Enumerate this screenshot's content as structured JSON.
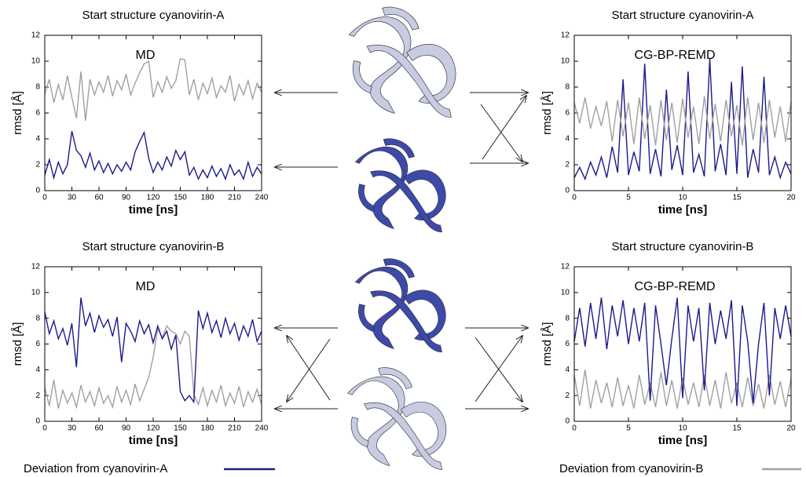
{
  "chart_data": [
    {
      "type": "line",
      "title": "Start structure cyanovirin-A",
      "annotation": "MD",
      "x_label": "time [ns]",
      "y_label": "rmsd [Å]",
      "x": [
        0,
        5,
        10,
        15,
        20,
        25,
        30,
        35,
        40,
        45,
        50,
        55,
        60,
        65,
        70,
        75,
        80,
        85,
        90,
        95,
        100,
        105,
        110,
        115,
        120,
        125,
        130,
        135,
        140,
        145,
        150,
        155,
        160,
        165,
        170,
        175,
        180,
        185,
        190,
        195,
        200,
        205,
        210,
        215,
        220,
        225,
        230,
        235,
        240
      ],
      "series": [
        {
          "color": "#a0a0a0",
          "values": [
            7.5,
            8.6,
            6.8,
            8.2,
            7.0,
            8.9,
            7.2,
            5.6,
            9.2,
            5.4,
            8.6,
            7.4,
            8.4,
            7.6,
            8.9,
            7.3,
            8.5,
            7.8,
            9.0,
            7.4,
            8.3,
            9.1,
            9.8,
            10.0,
            7.2,
            8.4,
            7.6,
            8.8,
            7.9,
            8.5,
            10.2,
            10.1,
            7.4,
            8.6,
            7.0,
            8.3,
            7.5,
            8.7,
            7.2,
            8.1,
            7.6,
            8.9,
            6.9,
            8.2,
            7.4,
            8.5,
            7.1,
            8.3,
            7.6
          ]
        },
        {
          "color": "#1a1a8c",
          "values": [
            1.2,
            2.4,
            1.0,
            2.2,
            1.3,
            2.0,
            4.6,
            3.1,
            2.7,
            1.8,
            2.9,
            1.6,
            2.3,
            1.4,
            2.1,
            1.3,
            2.0,
            1.5,
            2.2,
            1.6,
            3.0,
            3.8,
            4.5,
            2.5,
            1.4,
            2.2,
            1.6,
            2.6,
            1.9,
            3.1,
            2.4,
            3.0,
            1.2,
            1.8,
            0.9,
            1.6,
            1.0,
            1.9,
            1.1,
            1.7,
            0.9,
            2.0,
            1.2,
            1.6,
            0.9,
            2.2,
            1.1,
            1.8,
            1.3
          ]
        }
      ],
      "xlim": [
        0,
        240
      ],
      "ylim": [
        0,
        12
      ],
      "xticks": [
        0,
        30,
        60,
        90,
        120,
        150,
        180,
        210,
        240
      ],
      "yticks": [
        0,
        2,
        4,
        6,
        8,
        10,
        12
      ]
    },
    {
      "type": "line",
      "title": "Start structure cyanovirin-A",
      "annotation": "CG-BP-REMD",
      "x_label": "time [ns]",
      "y_label": "rmsd [Å]",
      "x": [
        0,
        0.5,
        1,
        1.5,
        2,
        2.5,
        3,
        3.5,
        4,
        4.5,
        5,
        5.5,
        6,
        6.5,
        7,
        7.5,
        8,
        8.5,
        9,
        9.5,
        10,
        10.5,
        11,
        11.5,
        12,
        12.5,
        13,
        13.5,
        14,
        14.5,
        15,
        15.5,
        16,
        16.5,
        17,
        17.5,
        18,
        18.5,
        19,
        19.5,
        20
      ],
      "series": [
        {
          "color": "#1a1a8c",
          "values": [
            1.0,
            1.8,
            0.9,
            2.2,
            1.2,
            2.6,
            1.0,
            3.4,
            1.4,
            8.6,
            1.2,
            3.0,
            1.5,
            9.8,
            1.3,
            3.2,
            1.1,
            7.8,
            1.6,
            3.5,
            1.2,
            9.2,
            1.4,
            2.8,
            1.1,
            10.2,
            1.5,
            3.6,
            1.2,
            8.4,
            1.3,
            9.6,
            1.0,
            3.2,
            1.4,
            8.8,
            1.2,
            2.6,
            1.0,
            2.2,
            1.3
          ]
        },
        {
          "color": "#a0a0a0",
          "values": [
            6.8,
            5.2,
            7.2,
            4.8,
            6.5,
            5.0,
            6.9,
            3.8,
            7.0,
            4.2,
            6.8,
            3.6,
            7.2,
            4.0,
            6.6,
            3.5,
            7.0,
            3.9,
            6.8,
            3.7,
            7.1,
            4.1,
            6.5,
            3.6,
            7.3,
            4.0,
            6.7,
            3.8,
            7.0,
            4.2,
            6.6,
            3.5,
            7.2,
            3.9,
            6.8,
            3.7,
            7.0,
            4.1,
            6.5,
            3.8,
            6.9
          ]
        }
      ],
      "xlim": [
        0,
        20
      ],
      "ylim": [
        0,
        12
      ],
      "xticks": [
        0,
        5,
        10,
        15,
        20
      ],
      "yticks": [
        0,
        2,
        4,
        6,
        8,
        10,
        12
      ]
    },
    {
      "type": "line",
      "title": "Start structure cyanovirin-B",
      "annotation": "MD",
      "x_label": "time [ns]",
      "y_label": "rmsd [Å]",
      "x": [
        0,
        5,
        10,
        15,
        20,
        25,
        30,
        35,
        40,
        45,
        50,
        55,
        60,
        65,
        70,
        75,
        80,
        85,
        90,
        95,
        100,
        105,
        110,
        115,
        120,
        125,
        130,
        135,
        140,
        145,
        150,
        155,
        160,
        165,
        170,
        175,
        180,
        185,
        190,
        195,
        200,
        205,
        210,
        215,
        220,
        225,
        230,
        235,
        240
      ],
      "series": [
        {
          "color": "#a0a0a0",
          "values": [
            2.6,
            1.2,
            3.2,
            1.0,
            2.4,
            1.4,
            2.2,
            1.1,
            2.8,
            1.5,
            2.3,
            1.2,
            2.6,
            1.4,
            2.0,
            1.1,
            2.7,
            1.5,
            2.4,
            1.3,
            2.9,
            1.6,
            2.5,
            3.4,
            5.0,
            7.2,
            6.5,
            7.4,
            7.0,
            6.8,
            6.0,
            7.0,
            6.6,
            2.1,
            1.3,
            2.6,
            1.2,
            2.4,
            1.5,
            2.8,
            1.2,
            2.2,
            1.4,
            2.7,
            1.1,
            2.3,
            1.5,
            2.5,
            1.3
          ]
        },
        {
          "color": "#1a1a8c",
          "values": [
            8.5,
            6.8,
            7.8,
            6.4,
            7.2,
            5.9,
            7.6,
            4.2,
            9.6,
            7.4,
            8.4,
            6.9,
            8.2,
            7.3,
            7.9,
            6.6,
            8.1,
            4.6,
            7.6,
            7.0,
            6.2,
            7.8,
            6.8,
            7.5,
            6.1,
            7.4,
            6.4,
            7.0,
            5.6,
            6.7,
            2.3,
            1.6,
            2.0,
            1.5,
            8.6,
            7.2,
            8.4,
            6.9,
            7.8,
            6.5,
            8.0,
            6.8,
            7.6,
            6.3,
            7.4,
            6.6,
            7.9,
            6.2,
            7.0
          ]
        }
      ],
      "xlim": [
        0,
        240
      ],
      "ylim": [
        0,
        12
      ],
      "xticks": [
        0,
        30,
        60,
        90,
        120,
        150,
        180,
        210,
        240
      ],
      "yticks": [
        0,
        2,
        4,
        6,
        8,
        10,
        12
      ]
    },
    {
      "type": "line",
      "title": "Start structure cyanovirin-B",
      "annotation": "CG-BP-REMD",
      "x_label": "time [ns]",
      "y_label": "rmsd [Å]",
      "x": [
        0,
        0.5,
        1,
        1.5,
        2,
        2.5,
        3,
        3.5,
        4,
        4.5,
        5,
        5.5,
        6,
        6.5,
        7,
        7.5,
        8,
        8.5,
        9,
        9.5,
        10,
        10.5,
        11,
        11.5,
        12,
        12.5,
        13,
        13.5,
        14,
        14.5,
        15,
        15.5,
        16,
        16.5,
        17,
        17.5,
        18,
        18.5,
        19,
        19.5,
        20
      ],
      "series": [
        {
          "color": "#a0a0a0",
          "values": [
            3.6,
            1.2,
            4.0,
            1.0,
            3.2,
            1.4,
            3.0,
            1.1,
            3.4,
            1.2,
            2.8,
            1.0,
            3.6,
            1.3,
            3.0,
            1.1,
            3.8,
            1.2,
            3.2,
            1.0,
            3.4,
            1.3,
            3.0,
            1.1,
            3.6,
            1.2,
            3.2,
            1.0,
            3.8,
            1.4,
            3.0,
            1.1,
            3.4,
            1.2,
            2.9,
            1.0,
            3.6,
            1.3,
            3.1,
            1.1,
            3.3
          ]
        },
        {
          "color": "#1a1a8c",
          "values": [
            6.2,
            8.8,
            5.8,
            9.2,
            6.4,
            9.6,
            5.6,
            9.0,
            6.6,
            9.4,
            6.0,
            8.8,
            6.2,
            9.2,
            1.6,
            9.0,
            6.0,
            2.8,
            6.4,
            9.6,
            1.8,
            9.0,
            6.2,
            8.8,
            2.4,
            9.2,
            6.0,
            8.6,
            6.4,
            9.4,
            1.2,
            9.0,
            6.2,
            1.4,
            6.0,
            9.2,
            2.0,
            8.8,
            6.4,
            9.0,
            6.6
          ]
        }
      ],
      "xlim": [
        0,
        20
      ],
      "ylim": [
        0,
        12
      ],
      "xticks": [
        0,
        5,
        10,
        15,
        20
      ],
      "yticks": [
        0,
        2,
        4,
        6,
        8,
        10,
        12
      ]
    }
  ],
  "legend": [
    {
      "name": "Deviation from cyanovirin-A",
      "color": "#1a1a8c"
    },
    {
      "name": "Deviation from cyanovirin-B",
      "color": "#a0a0a0"
    }
  ]
}
